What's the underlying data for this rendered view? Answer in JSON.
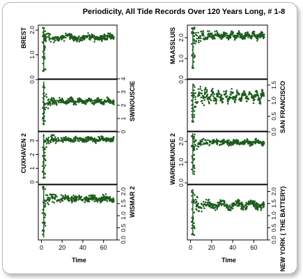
{
  "title": "Periodicity, All Tide Records Over 120 Years Long, # 1-8",
  "colors": {
    "points": "#1d5c1d",
    "frame": "#000000",
    "card_border": "#b9b9b9"
  },
  "chart_data": [
    {
      "type": "scatter",
      "series": [
        {
          "name": "BREST"
        }
      ],
      "ylabel": "BREST",
      "ylim": [
        0,
        2.2
      ],
      "yticks": [
        0.0,
        1.0,
        2.0
      ],
      "ytick_labels": [
        "0.0",
        "1.0",
        "2.0"
      ],
      "axis_side": "left",
      "xlim": [
        -3,
        73
      ],
      "level": 1.7,
      "spread": 0.07,
      "waves": [
        {
          "amp": 0.05,
          "period": 20
        }
      ],
      "early_low": 0.3,
      "early_high": 2.1
    },
    {
      "type": "scatter",
      "series": [
        {
          "name": "SWINOUSCIE"
        }
      ],
      "ylabel": "SWINOUSCIE",
      "ylim": [
        0,
        4
      ],
      "yticks": [
        0,
        1,
        2,
        3,
        4
      ],
      "ytick_labels": [
        "0",
        "1",
        "2",
        "3",
        "4"
      ],
      "axis_side": "right",
      "xlim": [
        -3,
        73
      ],
      "level": 2.3,
      "spread": 0.12,
      "waves": [
        {
          "amp": 0.1,
          "period": 9
        }
      ],
      "early_low": 0.5,
      "early_high": 3.8
    },
    {
      "type": "scatter",
      "series": [
        {
          "name": "CUXHAVEN 2"
        }
      ],
      "ylabel": "CUXHAVEN 2",
      "ylim": [
        -0.2,
        3.7
      ],
      "yticks": [
        0,
        1,
        2,
        3
      ],
      "ytick_labels": [
        "0",
        "1",
        "2",
        "3"
      ],
      "axis_side": "left",
      "xlim": [
        -3,
        73
      ],
      "level": 3.1,
      "spread": 0.12,
      "waves": [
        {
          "amp": 0.07,
          "period": 12
        }
      ],
      "early_low": 0.3,
      "early_high": 3.5
    },
    {
      "type": "scatter",
      "series": [
        {
          "name": "WISMAR 2"
        }
      ],
      "ylabel": "WISMAR 2",
      "ylim": [
        0,
        2.3
      ],
      "yticks": [
        0.0,
        0.5,
        1.0,
        1.5,
        2.0
      ],
      "ytick_labels": [
        "0.0",
        "0.5",
        "1.0",
        "1.5",
        "2.0"
      ],
      "axis_side": "right",
      "xlim": [
        -3,
        73
      ],
      "level": 1.7,
      "spread": 0.08,
      "waves": [
        {
          "amp": 0.05,
          "period": 13
        }
      ],
      "early_low": 0.1,
      "early_high": 2.2
    },
    {
      "type": "scatter",
      "series": [
        {
          "name": "MAASSLUIS"
        }
      ],
      "ylabel": "MAASSLUIS",
      "ylim": [
        0,
        2.6
      ],
      "yticks": [
        0.0,
        1.0,
        2.0
      ],
      "ytick_labels": [
        "0.0",
        "1.0",
        "2.0"
      ],
      "axis_side": "left",
      "xlim": [
        -3,
        73
      ],
      "level": 2.1,
      "spread": 0.1,
      "waves": [
        {
          "amp": 0.08,
          "period": 7
        }
      ],
      "early_low": 0.5,
      "early_high": 2.5
    },
    {
      "type": "scatter",
      "series": [
        {
          "name": "SAN FRANCISCO"
        }
      ],
      "ylabel": "SAN FRANCISCO",
      "ylim": [
        0,
        1.7
      ],
      "yticks": [
        0.0,
        0.5,
        1.0,
        1.5
      ],
      "ytick_labels": [
        "0.0",
        "0.5",
        "1.0",
        "1.5"
      ],
      "axis_side": "right",
      "xlim": [
        -3,
        73
      ],
      "level": 1.15,
      "spread": 0.09,
      "waves": [
        {
          "amp": 0.12,
          "period": 6
        }
      ],
      "early_low": 0.3,
      "early_high": 1.55
    },
    {
      "type": "scatter",
      "series": [
        {
          "name": "WARNEMUNDE 2"
        }
      ],
      "ylabel": "WARNEMUNDE 2",
      "ylim": [
        -0.1,
        2.5
      ],
      "yticks": [
        0.0,
        1.0,
        2.0
      ],
      "ytick_labels": [
        "0.0",
        "1.0",
        "2.0"
      ],
      "axis_side": "left",
      "xlim": [
        -3,
        73
      ],
      "level": 1.95,
      "spread": 0.08,
      "waves": [
        {
          "amp": 0.05,
          "period": 10
        }
      ],
      "early_low": 0.4,
      "early_high": 2.4
    },
    {
      "type": "scatter",
      "series": [
        {
          "name": "NEW YORK ( THE BATTERY)"
        }
      ],
      "ylabel": "NEW YORK ( THE BATTERY)",
      "ylim": [
        0,
        2.3
      ],
      "yticks": [
        0.0,
        0.5,
        1.0,
        1.5,
        2.0
      ],
      "ytick_labels": [
        "0.0",
        "0.5",
        "1.0",
        "1.5",
        "2.0"
      ],
      "axis_side": "right",
      "xlim": [
        -3,
        73
      ],
      "level": 1.45,
      "spread": 0.1,
      "waves": [
        {
          "amp": 0.1,
          "period": 14
        }
      ],
      "early_low": 0.2,
      "early_high": 2.1
    }
  ],
  "x_axis": {
    "xlabel": "Time",
    "xticks": [
      0,
      20,
      40,
      60
    ],
    "xtick_labels": [
      "0",
      "20",
      "40",
      "60"
    ]
  }
}
